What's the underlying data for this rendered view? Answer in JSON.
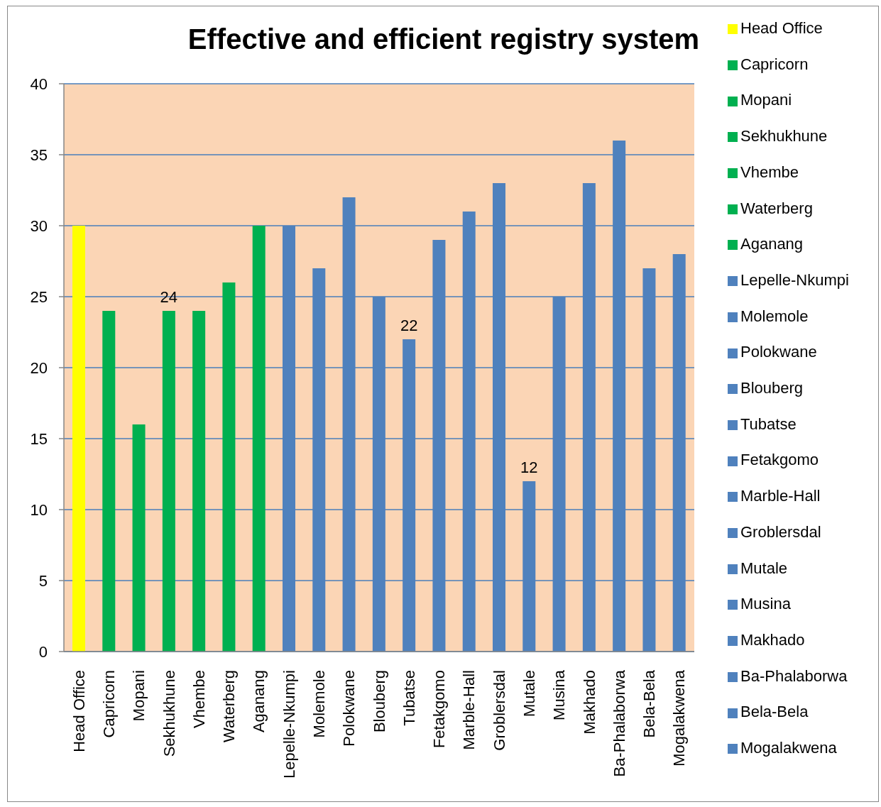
{
  "chart_data": {
    "type": "bar",
    "title": "Effective and efficient registry system",
    "categories": [
      "Head Office",
      "Capricorn",
      "Mopani",
      "Sekhukhune",
      "Vhembe",
      "Waterberg",
      "Aganang",
      "Lepelle-Nkumpi",
      "Molemole",
      "Polokwane",
      "Blouberg",
      "Tubatse",
      "Fetakgomo",
      "Marble-Hall",
      "Groblersdal",
      "Mutale",
      "Musina",
      "Makhado",
      "Ba-Phalaborwa",
      "Bela-Bela",
      "Mogalakwena"
    ],
    "stacked": true,
    "series": [
      {
        "name": "Head Office",
        "color": "#ffff00",
        "values": [
          30,
          null,
          null,
          null,
          null,
          null,
          null,
          null,
          null,
          null,
          null,
          null,
          null,
          null,
          null,
          null,
          null,
          null,
          null,
          null,
          null
        ]
      },
      {
        "name": "Capricorn",
        "color": "#00b050",
        "values": [
          null,
          24,
          null,
          null,
          null,
          null,
          null,
          null,
          null,
          null,
          null,
          null,
          null,
          null,
          null,
          null,
          null,
          null,
          null,
          null,
          null
        ]
      },
      {
        "name": "Mopani",
        "color": "#00b050",
        "values": [
          null,
          null,
          16,
          null,
          null,
          null,
          null,
          null,
          null,
          null,
          null,
          null,
          null,
          null,
          null,
          null,
          null,
          null,
          null,
          null,
          null
        ]
      },
      {
        "name": "Sekhukhune",
        "color": "#00b050",
        "values": [
          null,
          null,
          null,
          24,
          null,
          null,
          null,
          null,
          null,
          null,
          null,
          null,
          null,
          null,
          null,
          null,
          null,
          null,
          null,
          null,
          null
        ],
        "value_labels": [
          null,
          null,
          null,
          "24",
          null,
          null,
          null,
          null,
          null,
          null,
          null,
          null,
          null,
          null,
          null,
          null,
          null,
          null,
          null,
          null,
          null
        ]
      },
      {
        "name": "Vhembe",
        "color": "#00b050",
        "values": [
          null,
          null,
          null,
          null,
          24,
          null,
          null,
          null,
          null,
          null,
          null,
          null,
          null,
          null,
          null,
          null,
          null,
          null,
          null,
          null,
          null
        ]
      },
      {
        "name": "Waterberg",
        "color": "#00b050",
        "values": [
          null,
          null,
          null,
          null,
          null,
          26,
          null,
          null,
          null,
          null,
          null,
          null,
          null,
          null,
          null,
          null,
          null,
          null,
          null,
          null,
          null
        ]
      },
      {
        "name": "Aganang",
        "color": "#00b050",
        "values": [
          null,
          null,
          null,
          null,
          null,
          null,
          30,
          null,
          null,
          null,
          null,
          null,
          null,
          null,
          null,
          null,
          null,
          null,
          null,
          null,
          null
        ]
      },
      {
        "name": "Lepelle-Nkumpi",
        "color": "#4f81bd",
        "values": [
          null,
          null,
          null,
          null,
          null,
          null,
          null,
          30,
          null,
          null,
          null,
          null,
          null,
          null,
          null,
          null,
          null,
          null,
          null,
          null,
          null
        ]
      },
      {
        "name": "Molemole",
        "color": "#4f81bd",
        "values": [
          null,
          null,
          null,
          null,
          null,
          null,
          null,
          null,
          27,
          null,
          null,
          null,
          null,
          null,
          null,
          null,
          null,
          null,
          null,
          null,
          null
        ]
      },
      {
        "name": "Polokwane",
        "color": "#4f81bd",
        "values": [
          null,
          null,
          null,
          null,
          null,
          null,
          null,
          null,
          null,
          32,
          null,
          null,
          null,
          null,
          null,
          null,
          null,
          null,
          null,
          null,
          null
        ]
      },
      {
        "name": "Blouberg",
        "color": "#4f81bd",
        "values": [
          null,
          null,
          null,
          null,
          null,
          null,
          null,
          null,
          null,
          null,
          25,
          null,
          null,
          null,
          null,
          null,
          null,
          null,
          null,
          null,
          null
        ]
      },
      {
        "name": "Tubatse",
        "color": "#4f81bd",
        "values": [
          null,
          null,
          null,
          null,
          null,
          null,
          null,
          null,
          null,
          null,
          null,
          22,
          null,
          null,
          null,
          null,
          null,
          null,
          null,
          null,
          null
        ],
        "value_labels": [
          null,
          null,
          null,
          null,
          null,
          null,
          null,
          null,
          null,
          null,
          null,
          "22",
          null,
          null,
          null,
          null,
          null,
          null,
          null,
          null,
          null
        ]
      },
      {
        "name": "Fetakgomo",
        "color": "#4f81bd",
        "values": [
          null,
          null,
          null,
          null,
          null,
          null,
          null,
          null,
          null,
          null,
          null,
          null,
          29,
          null,
          null,
          null,
          null,
          null,
          null,
          null,
          null
        ]
      },
      {
        "name": "Marble-Hall",
        "color": "#4f81bd",
        "values": [
          null,
          null,
          null,
          null,
          null,
          null,
          null,
          null,
          null,
          null,
          null,
          null,
          null,
          31,
          null,
          null,
          null,
          null,
          null,
          null,
          null
        ]
      },
      {
        "name": "Groblersdal",
        "color": "#4f81bd",
        "values": [
          null,
          null,
          null,
          null,
          null,
          null,
          null,
          null,
          null,
          null,
          null,
          null,
          null,
          null,
          33,
          null,
          null,
          null,
          null,
          null,
          null
        ]
      },
      {
        "name": "Mutale",
        "color": "#4f81bd",
        "values": [
          null,
          null,
          null,
          null,
          null,
          null,
          null,
          null,
          null,
          null,
          null,
          null,
          null,
          null,
          null,
          12,
          null,
          null,
          null,
          null,
          null
        ],
        "value_labels": [
          null,
          null,
          null,
          null,
          null,
          null,
          null,
          null,
          null,
          null,
          null,
          null,
          null,
          null,
          null,
          "12",
          null,
          null,
          null,
          null,
          null
        ]
      },
      {
        "name": "Musina",
        "color": "#4f81bd",
        "values": [
          null,
          null,
          null,
          null,
          null,
          null,
          null,
          null,
          null,
          null,
          null,
          null,
          null,
          null,
          null,
          null,
          25,
          null,
          null,
          null,
          null
        ]
      },
      {
        "name": "Makhado",
        "color": "#4f81bd",
        "values": [
          null,
          null,
          null,
          null,
          null,
          null,
          null,
          null,
          null,
          null,
          null,
          null,
          null,
          null,
          null,
          null,
          null,
          33,
          null,
          null,
          null
        ]
      },
      {
        "name": "Ba-Phalaborwa",
        "color": "#4f81bd",
        "values": [
          null,
          null,
          null,
          null,
          null,
          null,
          null,
          null,
          null,
          null,
          null,
          null,
          null,
          null,
          null,
          null,
          null,
          null,
          36,
          null,
          null
        ]
      },
      {
        "name": "Bela-Bela",
        "color": "#4f81bd",
        "values": [
          null,
          null,
          null,
          null,
          null,
          null,
          null,
          null,
          null,
          null,
          null,
          null,
          null,
          null,
          null,
          null,
          null,
          null,
          null,
          27,
          null
        ]
      },
      {
        "name": "Mogalakwena",
        "color": "#4f81bd",
        "values": [
          null,
          null,
          null,
          null,
          null,
          null,
          null,
          null,
          null,
          null,
          null,
          null,
          null,
          null,
          null,
          null,
          null,
          null,
          null,
          null,
          28
        ]
      }
    ],
    "ylim": [
      0,
      40
    ],
    "yticks": [
      0,
      5,
      10,
      15,
      20,
      25,
      30,
      35,
      40
    ],
    "grid": "y",
    "legend": "right"
  }
}
